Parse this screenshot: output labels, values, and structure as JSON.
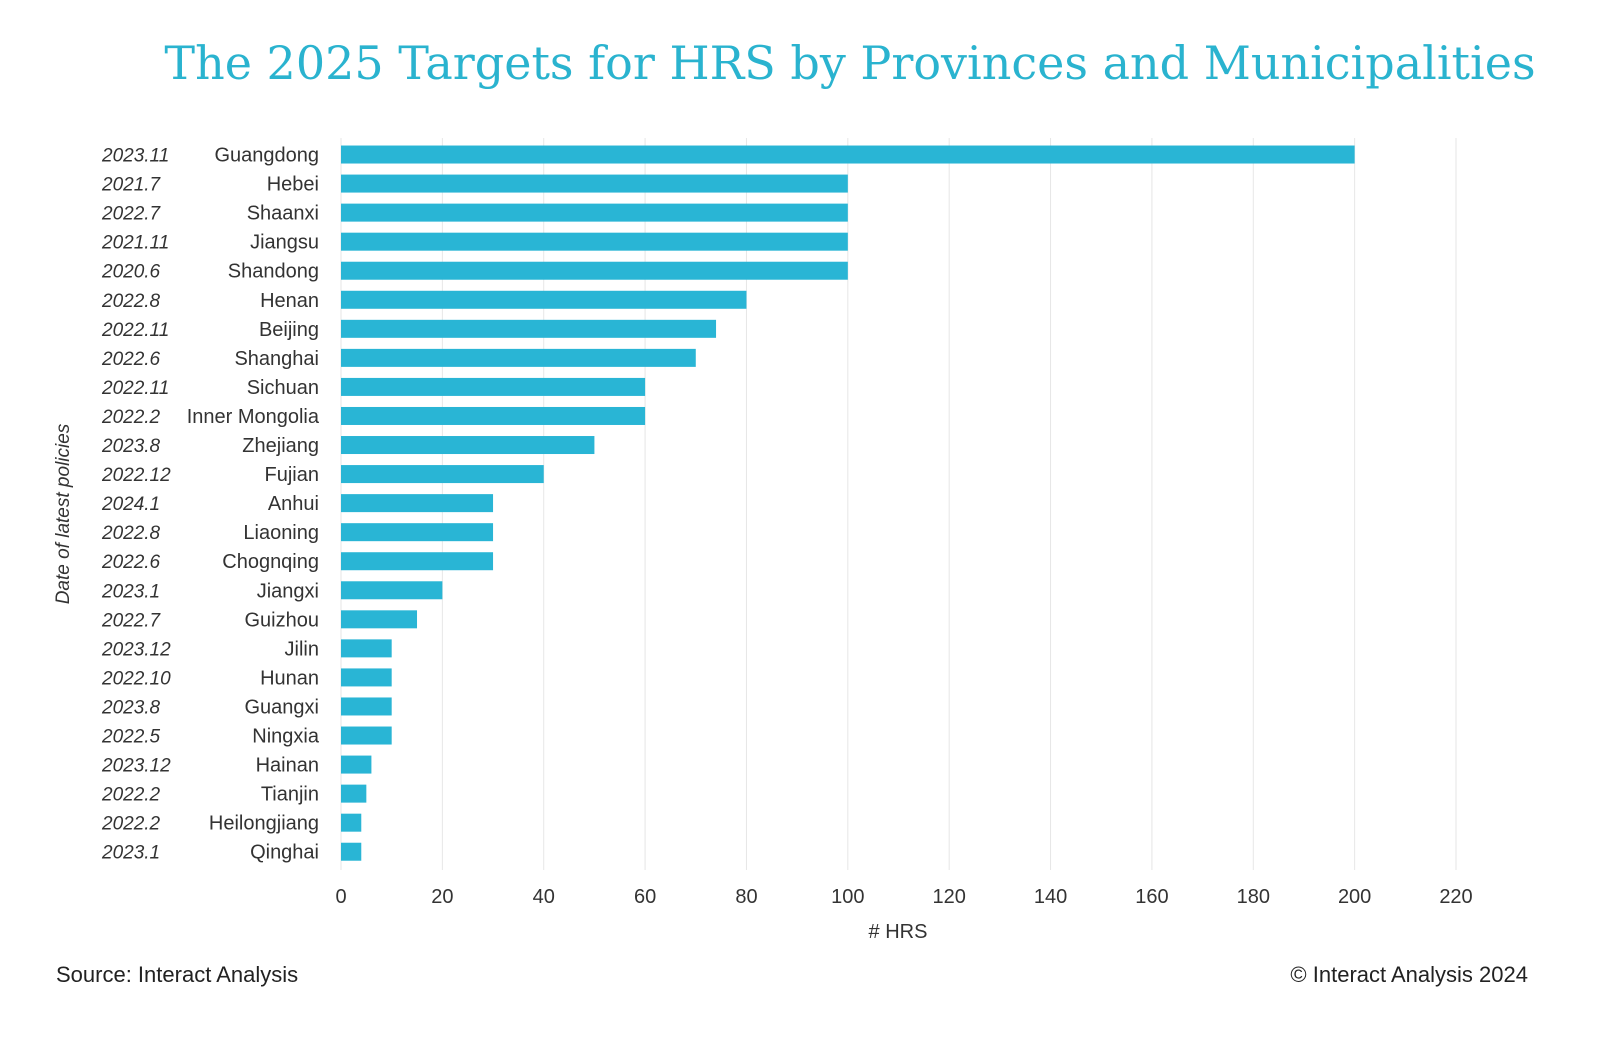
{
  "chart_data": {
    "type": "bar",
    "orientation": "horizontal",
    "title": "The 2025 Targets for HRS by Provinces and Municipalities",
    "xlabel": "# HRS",
    "ylabel": "Date of latest policies",
    "xlim": [
      0,
      220
    ],
    "xticks": [
      "0",
      "20",
      "40",
      "60",
      "80",
      "100",
      "120",
      "140",
      "160",
      "180",
      "200",
      "220"
    ],
    "grid": "vertical",
    "bar_color": "#29b5d5",
    "title_color": "#2ab3cf",
    "categories": [
      "Guangdong",
      "Hebei",
      "Shaanxi",
      "Jiangsu",
      "Shandong",
      "Henan",
      "Beijing",
      "Shanghai",
      "Sichuan",
      "Inner Mongolia",
      "Zhejiang",
      "Fujian",
      "Anhui",
      "Liaoning",
      "Chognqing",
      "Jiangxi",
      "Guizhou",
      "Jilin",
      "Hunan",
      "Guangxi",
      "Ningxia",
      "Hainan",
      "Tianjin",
      "Heilongjiang",
      "Qinghai"
    ],
    "dates": [
      "2023.11",
      "2021.7",
      "2022.7",
      "2021.11",
      "2020.6",
      "2022.8",
      "2022.11",
      "2022.6",
      "2022.11",
      "2022.2",
      "2023.8",
      "2022.12",
      "2024.1",
      "2022.8",
      "2022.6",
      "2023.1",
      "2022.7",
      "2023.12",
      "2022.10",
      "2023.8",
      "2022.5",
      "2023.12",
      "2022.2",
      "2022.2",
      "2023.1"
    ],
    "values": [
      200,
      100,
      100,
      100,
      100,
      80,
      74,
      70,
      60,
      60,
      50,
      40,
      30,
      30,
      30,
      20,
      15,
      10,
      10,
      10,
      10,
      6,
      5,
      4,
      4
    ]
  },
  "footer": {
    "source": "Source: Interact Analysis",
    "copyright": "© Interact Analysis 2024"
  }
}
